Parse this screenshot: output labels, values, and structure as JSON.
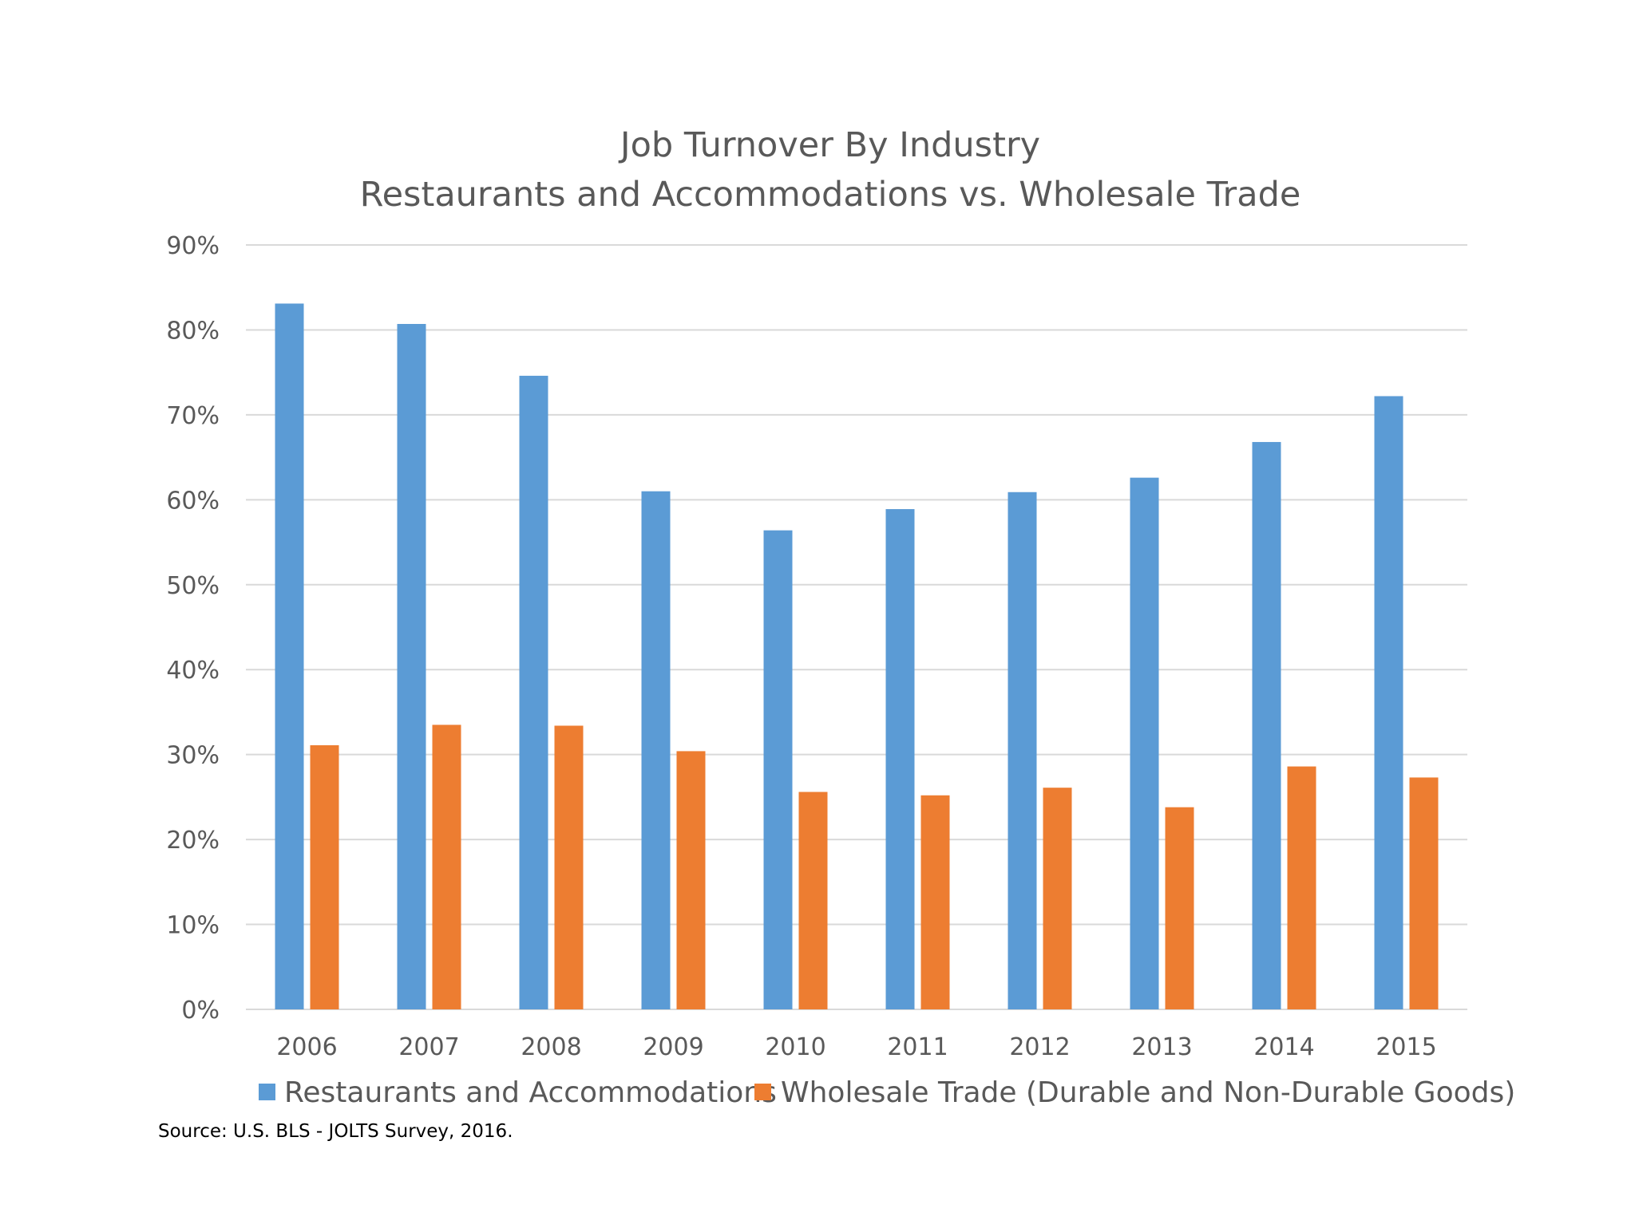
{
  "chart_data": {
    "type": "bar",
    "title": "Job Turnover By Industry",
    "subtitle": "Restaurants and Accommodations vs. Wholesale Trade",
    "xlabel": "",
    "ylabel": "",
    "categories": [
      "2006",
      "2007",
      "2008",
      "2009",
      "2010",
      "2011",
      "2012",
      "2013",
      "2014",
      "2015"
    ],
    "series": [
      {
        "name": "Restaurants and Accommodations",
        "color": "#5b9bd5",
        "values": [
          83.1,
          80.7,
          74.6,
          61.0,
          56.4,
          58.9,
          60.9,
          62.6,
          66.8,
          72.2
        ]
      },
      {
        "name": "Wholesale Trade (Durable and Non-Durable Goods)",
        "color": "#ed7d31",
        "values": [
          31.1,
          33.5,
          33.4,
          30.4,
          25.6,
          25.2,
          26.1,
          23.8,
          28.6,
          27.3
        ]
      }
    ],
    "ylim": [
      0,
      90
    ],
    "yticks": [
      "0%",
      "10%",
      "20%",
      "30%",
      "40%",
      "50%",
      "60%",
      "70%",
      "80%",
      "90%"
    ],
    "grid": true,
    "legend_position": "bottom"
  },
  "footer": {
    "source": "Source: U.S. BLS - JOLTS Survey, 2016."
  }
}
